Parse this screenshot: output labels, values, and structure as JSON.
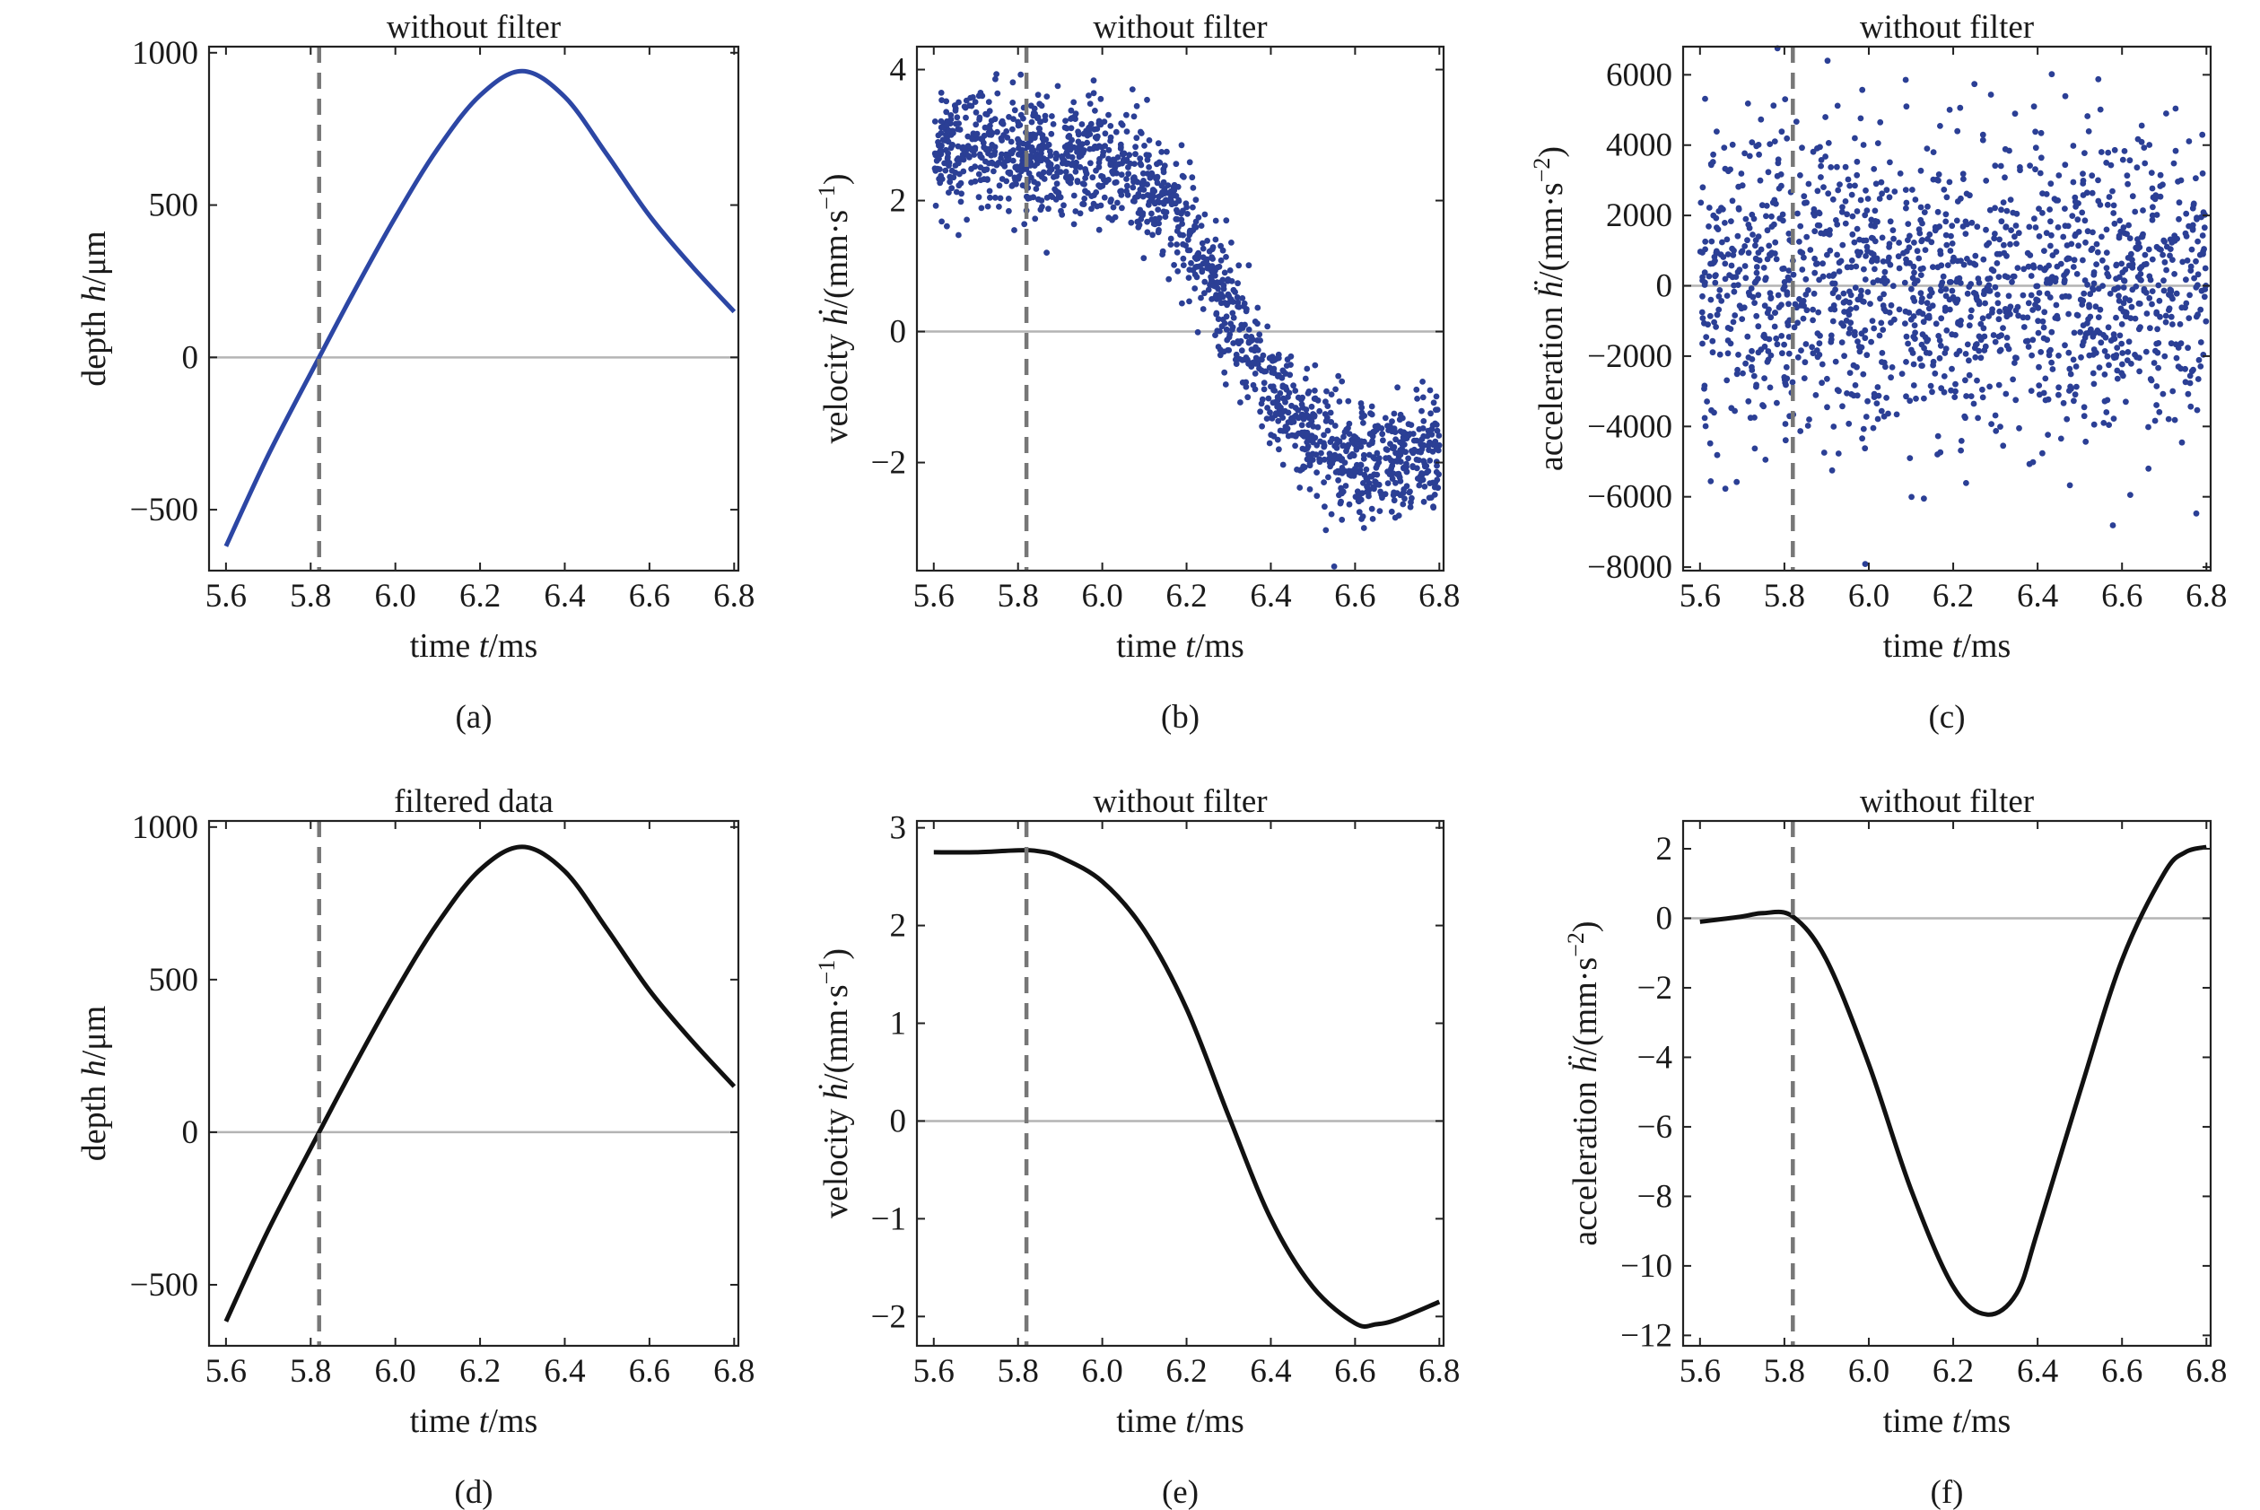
{
  "colors": {
    "scatter": "#2b3f95",
    "line_a": "#2c46a4",
    "line_filtered": "#111111",
    "dashed": "#777777",
    "zero": "#b4b4b4",
    "axes": "#222222"
  },
  "chart_data": [
    {
      "id": "a",
      "caption": "(a)",
      "type": "line",
      "title": "without filter",
      "xlabel": {
        "pre": "time ",
        "var": "t",
        "post": "/ms"
      },
      "ylabel": {
        "pre": "depth ",
        "var": "h",
        "post": "/μm"
      },
      "xlim": [
        5.56,
        6.81
      ],
      "ylim": [
        -700,
        1020
      ],
      "xticks": [
        5.6,
        5.8,
        6.0,
        6.2,
        6.4,
        6.6,
        6.8
      ],
      "yticks": [
        -500,
        0,
        500,
        1000
      ],
      "vline": 5.82,
      "zero_line": true,
      "series": [
        {
          "points": [
            [
              5.6,
              -620
            ],
            [
              5.7,
              -320
            ],
            [
              5.82,
              0
            ],
            [
              5.9,
              210
            ],
            [
              6.0,
              460
            ],
            [
              6.1,
              685
            ],
            [
              6.2,
              860
            ],
            [
              6.3,
              940
            ],
            [
              6.4,
              855
            ],
            [
              6.5,
              665
            ],
            [
              6.6,
              465
            ],
            [
              6.7,
              300
            ],
            [
              6.8,
              150
            ]
          ]
        }
      ]
    },
    {
      "id": "b",
      "caption": "(b)",
      "type": "scatter",
      "title": "without filter",
      "xlabel": {
        "pre": "time ",
        "var": "t",
        "post": "/ms"
      },
      "ylabel": {
        "pre": "velocity ",
        "var": "ḣ",
        "post": "/(mm·s",
        "sup": "−1",
        "end": ")"
      },
      "xlim": [
        5.56,
        6.81
      ],
      "ylim": [
        -3.65,
        4.35
      ],
      "xticks": [
        5.6,
        5.8,
        6.0,
        6.2,
        6.4,
        6.6,
        6.8
      ],
      "yticks": [
        -2,
        0,
        2,
        4
      ],
      "vline": 5.82,
      "zero_line": true,
      "series": [
        {
          "x_range": [
            5.6,
            6.8
          ],
          "n_points": 1500,
          "trend": [
            [
              5.6,
              2.8
            ],
            [
              5.8,
              2.75
            ],
            [
              6.0,
              2.6
            ],
            [
              6.1,
              2.3
            ],
            [
              6.2,
              1.6
            ],
            [
              6.3,
              0.4
            ],
            [
              6.4,
              -0.8
            ],
            [
              6.5,
              -1.6
            ],
            [
              6.6,
              -2.0
            ],
            [
              6.7,
              -1.95
            ],
            [
              6.8,
              -1.8
            ]
          ],
          "spread": 0.45
        }
      ]
    },
    {
      "id": "c",
      "caption": "(c)",
      "type": "scatter",
      "title": "without filter",
      "xlabel": {
        "pre": "time ",
        "var": "t",
        "post": "/ms"
      },
      "ylabel": {
        "pre": "acceleration ",
        "var": "ḧ",
        "post": "/(mm·s",
        "sup": "−2",
        "end": ")"
      },
      "xlim": [
        5.56,
        6.81
      ],
      "ylim": [
        -8100,
        6800
      ],
      "xticks": [
        5.6,
        5.8,
        6.0,
        6.2,
        6.4,
        6.6,
        6.8
      ],
      "yticks": [
        -8000,
        -6000,
        -4000,
        -2000,
        0,
        2000,
        4000,
        6000
      ],
      "vline": 5.82,
      "zero_line": true,
      "series": [
        {
          "x_range": [
            5.6,
            6.8
          ],
          "n_points": 1500,
          "trend": [
            [
              5.6,
              0
            ],
            [
              6.8,
              0
            ]
          ],
          "spread": 2200
        }
      ]
    },
    {
      "id": "d",
      "caption": "(d)",
      "type": "line",
      "title": "filtered data",
      "xlabel": {
        "pre": "time ",
        "var": "t",
        "post": "/ms"
      },
      "ylabel": {
        "pre": "depth ",
        "var": "h",
        "post": "/μm"
      },
      "xlim": [
        5.56,
        6.81
      ],
      "ylim": [
        -700,
        1020
      ],
      "xticks": [
        5.6,
        5.8,
        6.0,
        6.2,
        6.4,
        6.6,
        6.8
      ],
      "yticks": [
        -500,
        0,
        500,
        1000
      ],
      "vline": 5.82,
      "zero_line": true,
      "series": [
        {
          "points": [
            [
              5.6,
              -620
            ],
            [
              5.7,
              -320
            ],
            [
              5.82,
              0
            ],
            [
              5.9,
              210
            ],
            [
              6.0,
              460
            ],
            [
              6.1,
              685
            ],
            [
              6.2,
              860
            ],
            [
              6.3,
              935
            ],
            [
              6.4,
              855
            ],
            [
              6.5,
              665
            ],
            [
              6.6,
              465
            ],
            [
              6.7,
              300
            ],
            [
              6.8,
              150
            ]
          ]
        }
      ]
    },
    {
      "id": "e",
      "caption": "(e)",
      "type": "line",
      "title": "without filter",
      "xlabel": {
        "pre": "time ",
        "var": "t",
        "post": "/ms"
      },
      "ylabel": {
        "pre": "velocity ",
        "var": "ḣ",
        "post": "/(mm·s",
        "sup": "−1",
        "end": ")"
      },
      "xlim": [
        5.56,
        6.81
      ],
      "ylim": [
        -2.3,
        3.07
      ],
      "xticks": [
        5.6,
        5.8,
        6.0,
        6.2,
        6.4,
        6.6,
        6.8
      ],
      "yticks": [
        -2,
        -1,
        0,
        1,
        2,
        3
      ],
      "vline": 5.82,
      "zero_line": true,
      "series": [
        {
          "points": [
            [
              5.6,
              2.75
            ],
            [
              5.7,
              2.75
            ],
            [
              5.8,
              2.77
            ],
            [
              5.85,
              2.76
            ],
            [
              5.9,
              2.7
            ],
            [
              6.0,
              2.45
            ],
            [
              6.1,
              1.95
            ],
            [
              6.2,
              1.15
            ],
            [
              6.3,
              0.05
            ],
            [
              6.4,
              -1.0
            ],
            [
              6.5,
              -1.7
            ],
            [
              6.6,
              -2.07
            ],
            [
              6.65,
              -2.08
            ],
            [
              6.7,
              -2.03
            ],
            [
              6.8,
              -1.85
            ]
          ]
        }
      ]
    },
    {
      "id": "f",
      "caption": "(f)",
      "type": "line",
      "title": "without filter",
      "xlabel": {
        "pre": "time ",
        "var": "t",
        "post": "/ms"
      },
      "ylabel": {
        "pre": "acceleration ",
        "var": "ḧ",
        "post": "/(mm·s",
        "sup": "−2",
        "end": ")"
      },
      "xlim": [
        5.56,
        6.81
      ],
      "ylim": [
        -12.3,
        2.8
      ],
      "xticks": [
        5.6,
        5.8,
        6.0,
        6.2,
        6.4,
        6.6,
        6.8
      ],
      "yticks": [
        -12,
        -10,
        -8,
        -6,
        -4,
        -2,
        0,
        2
      ],
      "vline": 5.82,
      "zero_line": true,
      "series": [
        {
          "points": [
            [
              5.6,
              -0.1
            ],
            [
              5.7,
              0.05
            ],
            [
              5.75,
              0.15
            ],
            [
              5.82,
              0.05
            ],
            [
              5.9,
              -1.2
            ],
            [
              6.0,
              -4.2
            ],
            [
              6.1,
              -7.8
            ],
            [
              6.2,
              -10.6
            ],
            [
              6.28,
              -11.4
            ],
            [
              6.35,
              -10.8
            ],
            [
              6.4,
              -9.0
            ],
            [
              6.5,
              -5.0
            ],
            [
              6.6,
              -1.2
            ],
            [
              6.7,
              1.3
            ],
            [
              6.75,
              1.9
            ],
            [
              6.8,
              2.05
            ]
          ]
        }
      ]
    }
  ]
}
